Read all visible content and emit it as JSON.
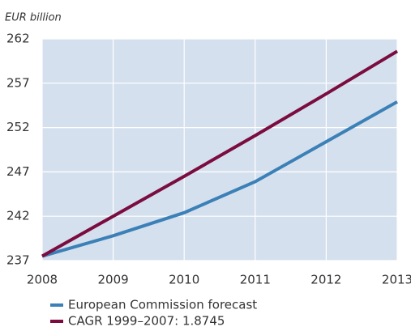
{
  "chart_data": {
    "type": "line",
    "y_label": "EUR billion",
    "x": [
      2008,
      2009,
      2010,
      2011,
      2012,
      2013
    ],
    "xlim": [
      2008,
      2013
    ],
    "xticks": [
      2008,
      2009,
      2010,
      2011,
      2012,
      2013
    ],
    "ylim": [
      237,
      262
    ],
    "yticks": [
      237,
      242,
      247,
      252,
      257,
      262
    ],
    "grid": true,
    "series": [
      {
        "name": "European Commission forecast",
        "color": "#3b80b6",
        "values": [
          237.5,
          239.8,
          242.4,
          245.9,
          250.4,
          254.9
        ]
      },
      {
        "name": "CAGR 1999–2007: 1.8745",
        "color": "#7b0c40",
        "values": [
          237.5,
          242.0,
          246.5,
          251.1,
          255.8,
          260.6
        ]
      }
    ]
  }
}
